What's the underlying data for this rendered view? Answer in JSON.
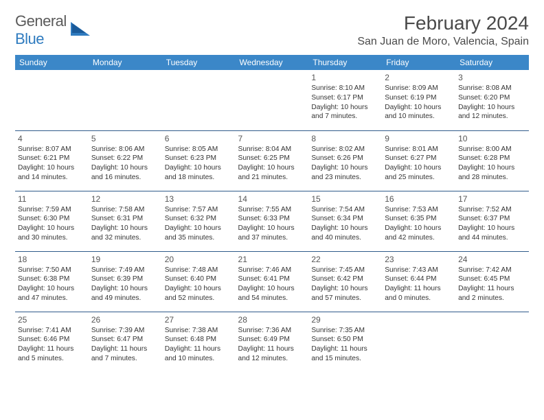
{
  "logo": {
    "text1": "General",
    "text2": "Blue"
  },
  "title": "February 2024",
  "location": "San Juan de Moro, Valencia, Spain",
  "colors": {
    "header_bg": "#3b87c8",
    "header_text": "#ffffff",
    "rule": "#2f5a8a",
    "body_text": "#333333",
    "title_text": "#4a4a4a",
    "logo_gray": "#5a5a5a",
    "logo_blue": "#2f7bbf",
    "background": "#ffffff"
  },
  "layout": {
    "columns": 7,
    "rows": 5,
    "cell_font_size_pt": 7.7,
    "daynum_font_size_pt": 9,
    "header_font_size_pt": 9,
    "title_font_size_pt": 21,
    "location_font_size_pt": 12
  },
  "weekdays": [
    "Sunday",
    "Monday",
    "Tuesday",
    "Wednesday",
    "Thursday",
    "Friday",
    "Saturday"
  ],
  "first_weekday_index": 4,
  "days": [
    {
      "n": 1,
      "sunrise": "8:10 AM",
      "sunset": "6:17 PM",
      "daylight": "10 hours and 7 minutes."
    },
    {
      "n": 2,
      "sunrise": "8:09 AM",
      "sunset": "6:19 PM",
      "daylight": "10 hours and 10 minutes."
    },
    {
      "n": 3,
      "sunrise": "8:08 AM",
      "sunset": "6:20 PM",
      "daylight": "10 hours and 12 minutes."
    },
    {
      "n": 4,
      "sunrise": "8:07 AM",
      "sunset": "6:21 PM",
      "daylight": "10 hours and 14 minutes."
    },
    {
      "n": 5,
      "sunrise": "8:06 AM",
      "sunset": "6:22 PM",
      "daylight": "10 hours and 16 minutes."
    },
    {
      "n": 6,
      "sunrise": "8:05 AM",
      "sunset": "6:23 PM",
      "daylight": "10 hours and 18 minutes."
    },
    {
      "n": 7,
      "sunrise": "8:04 AM",
      "sunset": "6:25 PM",
      "daylight": "10 hours and 21 minutes."
    },
    {
      "n": 8,
      "sunrise": "8:02 AM",
      "sunset": "6:26 PM",
      "daylight": "10 hours and 23 minutes."
    },
    {
      "n": 9,
      "sunrise": "8:01 AM",
      "sunset": "6:27 PM",
      "daylight": "10 hours and 25 minutes."
    },
    {
      "n": 10,
      "sunrise": "8:00 AM",
      "sunset": "6:28 PM",
      "daylight": "10 hours and 28 minutes."
    },
    {
      "n": 11,
      "sunrise": "7:59 AM",
      "sunset": "6:30 PM",
      "daylight": "10 hours and 30 minutes."
    },
    {
      "n": 12,
      "sunrise": "7:58 AM",
      "sunset": "6:31 PM",
      "daylight": "10 hours and 32 minutes."
    },
    {
      "n": 13,
      "sunrise": "7:57 AM",
      "sunset": "6:32 PM",
      "daylight": "10 hours and 35 minutes."
    },
    {
      "n": 14,
      "sunrise": "7:55 AM",
      "sunset": "6:33 PM",
      "daylight": "10 hours and 37 minutes."
    },
    {
      "n": 15,
      "sunrise": "7:54 AM",
      "sunset": "6:34 PM",
      "daylight": "10 hours and 40 minutes."
    },
    {
      "n": 16,
      "sunrise": "7:53 AM",
      "sunset": "6:35 PM",
      "daylight": "10 hours and 42 minutes."
    },
    {
      "n": 17,
      "sunrise": "7:52 AM",
      "sunset": "6:37 PM",
      "daylight": "10 hours and 44 minutes."
    },
    {
      "n": 18,
      "sunrise": "7:50 AM",
      "sunset": "6:38 PM",
      "daylight": "10 hours and 47 minutes."
    },
    {
      "n": 19,
      "sunrise": "7:49 AM",
      "sunset": "6:39 PM",
      "daylight": "10 hours and 49 minutes."
    },
    {
      "n": 20,
      "sunrise": "7:48 AM",
      "sunset": "6:40 PM",
      "daylight": "10 hours and 52 minutes."
    },
    {
      "n": 21,
      "sunrise": "7:46 AM",
      "sunset": "6:41 PM",
      "daylight": "10 hours and 54 minutes."
    },
    {
      "n": 22,
      "sunrise": "7:45 AM",
      "sunset": "6:42 PM",
      "daylight": "10 hours and 57 minutes."
    },
    {
      "n": 23,
      "sunrise": "7:43 AM",
      "sunset": "6:44 PM",
      "daylight": "11 hours and 0 minutes."
    },
    {
      "n": 24,
      "sunrise": "7:42 AM",
      "sunset": "6:45 PM",
      "daylight": "11 hours and 2 minutes."
    },
    {
      "n": 25,
      "sunrise": "7:41 AM",
      "sunset": "6:46 PM",
      "daylight": "11 hours and 5 minutes."
    },
    {
      "n": 26,
      "sunrise": "7:39 AM",
      "sunset": "6:47 PM",
      "daylight": "11 hours and 7 minutes."
    },
    {
      "n": 27,
      "sunrise": "7:38 AM",
      "sunset": "6:48 PM",
      "daylight": "11 hours and 10 minutes."
    },
    {
      "n": 28,
      "sunrise": "7:36 AM",
      "sunset": "6:49 PM",
      "daylight": "11 hours and 12 minutes."
    },
    {
      "n": 29,
      "sunrise": "7:35 AM",
      "sunset": "6:50 PM",
      "daylight": "11 hours and 15 minutes."
    }
  ],
  "labels": {
    "sunrise": "Sunrise:",
    "sunset": "Sunset:",
    "daylight": "Daylight:"
  }
}
